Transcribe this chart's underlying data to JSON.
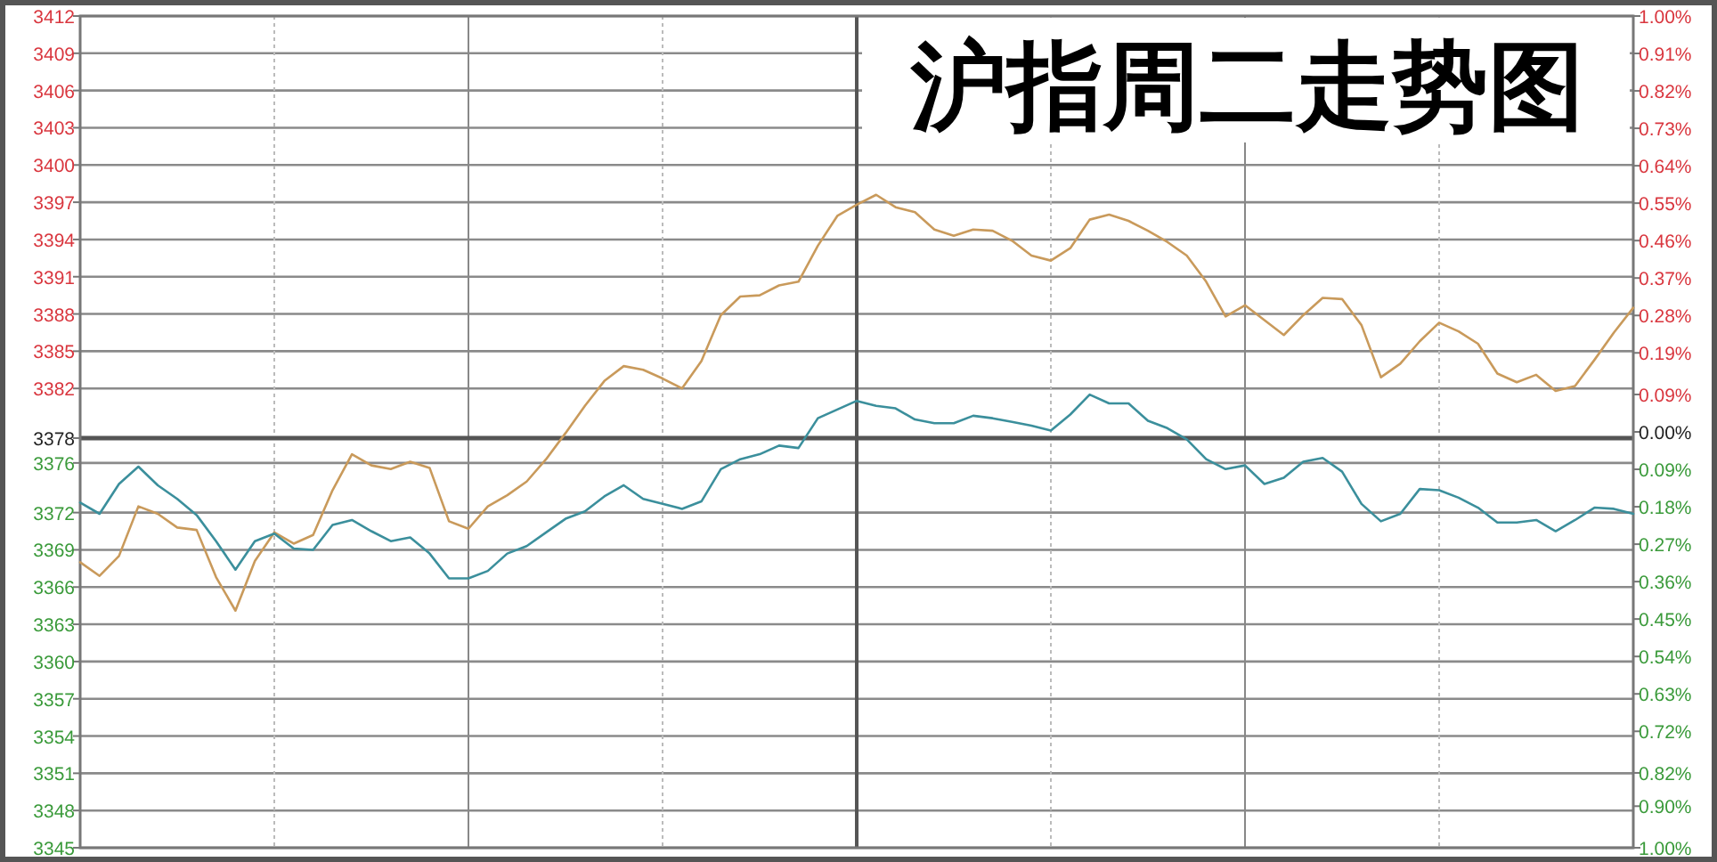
{
  "chart_data": {
    "type": "line",
    "title": "沪指周二走势图",
    "grid": true,
    "tick_labels": "y",
    "line_style": "solid",
    "marker": "none",
    "categories": [
      null,
      null,
      null,
      null,
      null,
      null,
      null,
      null,
      null,
      null,
      null,
      null,
      null,
      null,
      null,
      null,
      null,
      null,
      null,
      null,
      null,
      null,
      null,
      null,
      null,
      null,
      null,
      null,
      null,
      null,
      null,
      null,
      null,
      null,
      null,
      null,
      null,
      null,
      null,
      null,
      null,
      null,
      null,
      null,
      null,
      null,
      null,
      null,
      null,
      null,
      null,
      null,
      null,
      null,
      null,
      null,
      null,
      null,
      null,
      null,
      null,
      null,
      null,
      null,
      null,
      null,
      null,
      null,
      null,
      null,
      null,
      null,
      null,
      null,
      null,
      null,
      null,
      null,
      null,
      null,
      null
    ],
    "ylim": [
      3345,
      3412
    ],
    "yticks": [
      3345,
      3348,
      3351,
      3354,
      3357,
      3360,
      3363,
      3366,
      3369,
      3372,
      3376,
      3378,
      3382,
      3385,
      3388,
      3391,
      3394,
      3397,
      3400,
      3403,
      3406,
      3409,
      3412
    ],
    "y2lim": [
      -1,
      1
    ],
    "y2ticks": [
      {
        "value": -1,
        "label": "1.00%"
      },
      {
        "value": -0.9,
        "label": "0.90%"
      },
      {
        "value": -0.82,
        "label": "0.82%"
      },
      {
        "value": -0.72,
        "label": "0.72%"
      },
      {
        "value": -0.63,
        "label": "0.63%"
      },
      {
        "value": -0.54,
        "label": "0.54%"
      },
      {
        "value": -0.45,
        "label": "0.45%"
      },
      {
        "value": -0.36,
        "label": "0.36%"
      },
      {
        "value": -0.27,
        "label": "0.27%"
      },
      {
        "value": -0.18,
        "label": "0.18%"
      },
      {
        "value": -0.09,
        "label": "0.09%"
      },
      {
        "value": 0,
        "label": "0.00%"
      },
      {
        "value": 0.09,
        "label": "0.09%"
      },
      {
        "value": 0.19,
        "label": "0.19%"
      },
      {
        "value": 0.28,
        "label": "0.28%"
      },
      {
        "value": 0.37,
        "label": "0.37%"
      },
      {
        "value": 0.46,
        "label": "0.46%"
      },
      {
        "value": 0.55,
        "label": "0.55%"
      },
      {
        "value": 0.64,
        "label": "0.64%"
      },
      {
        "value": 0.73,
        "label": "0.73%"
      },
      {
        "value": 0.82,
        "label": "0.82%"
      },
      {
        "value": 0.91,
        "label": "0.91%"
      },
      {
        "value": 1,
        "label": "1.00%"
      }
    ],
    "ref_lines": [
      {
        "axis": "y",
        "value": 3378,
        "color": "#555555"
      }
    ],
    "series": [
      {
        "color": "#c99a5b",
        "values": [
          3368.0,
          3366.9,
          3368.5,
          3372.5,
          3371.9,
          3370.8,
          3370.6,
          3366.8,
          3364.1,
          3368.1,
          3370.4,
          3369.5,
          3370.2,
          3373.8,
          3376.7,
          3375.8,
          3375.5,
          3376.1,
          3375.6,
          3371.3,
          3370.7,
          3372.5,
          3373.4,
          3374.5,
          3376.3,
          3378.4,
          3380.6,
          3382.6,
          3383.8,
          3383.5,
          3382.8,
          3382.0,
          3384.2,
          3387.9,
          3389.4,
          3389.5,
          3390.3,
          3390.6,
          3393.5,
          3395.9,
          3396.8,
          3397.6,
          3396.6,
          3396.2,
          3394.8,
          3394.3,
          3394.8,
          3394.7,
          3393.9,
          3392.7,
          3392.3,
          3393.3,
          3395.6,
          3396.0,
          3395.5,
          3394.7,
          3393.8,
          3392.7,
          3390.6,
          3387.8,
          3388.7,
          3387.5,
          3386.3,
          3387.9,
          3389.3,
          3389.2,
          3387.1,
          3382.9,
          3384.0,
          3385.8,
          3387.3,
          3386.6,
          3385.6,
          3383.2,
          3382.5,
          3383.1,
          3381.8,
          3382.2,
          3384.3,
          3386.5,
          3388.5
        ]
      },
      {
        "color": "#3b8f9c",
        "values": [
          3372.8,
          3371.9,
          3374.3,
          3375.7,
          3374.2,
          3373.1,
          3371.8,
          3369.7,
          3367.4,
          3369.7,
          3370.3,
          3369.1,
          3369.0,
          3371.0,
          3371.4,
          3370.5,
          3369.7,
          3370.0,
          3368.7,
          3366.7,
          3366.7,
          3367.3,
          3368.7,
          3369.3,
          3370.4,
          3371.5,
          3372.1,
          3373.3,
          3374.2,
          3373.1,
          3372.7,
          3372.3,
          3372.9,
          3375.5,
          3376.3,
          3376.7,
          3377.4,
          3377.2,
          3379.6,
          3380.3,
          3381.0,
          3380.6,
          3380.4,
          3379.5,
          3379.2,
          3379.2,
          3379.8,
          3379.6,
          3379.3,
          3379.0,
          3378.6,
          3379.9,
          3381.5,
          3380.8,
          3380.8,
          3379.4,
          3378.8,
          3377.9,
          3376.3,
          3375.5,
          3375.8,
          3374.3,
          3374.8,
          3376.1,
          3376.4,
          3375.3,
          3372.7,
          3371.3,
          3371.9,
          3373.9,
          3373.8,
          3373.2,
          3372.4,
          3371.2,
          3371.2,
          3371.4,
          3370.5,
          3371.4,
          3372.4,
          3372.3,
          3371.9
        ]
      }
    ]
  }
}
